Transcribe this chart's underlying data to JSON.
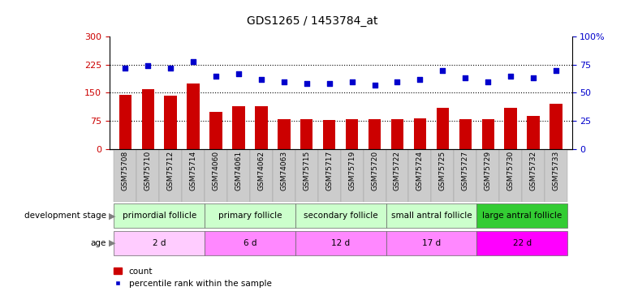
{
  "title": "GDS1265 / 1453784_at",
  "samples": [
    "GSM75708",
    "GSM75710",
    "GSM75712",
    "GSM75714",
    "GSM74060",
    "GSM74061",
    "GSM74062",
    "GSM74063",
    "GSM75715",
    "GSM75717",
    "GSM75719",
    "GSM75720",
    "GSM75722",
    "GSM75724",
    "GSM75725",
    "GSM75727",
    "GSM75729",
    "GSM75730",
    "GSM75732",
    "GSM75733"
  ],
  "counts": [
    145,
    160,
    143,
    175,
    100,
    115,
    115,
    80,
    80,
    78,
    80,
    80,
    80,
    82,
    110,
    80,
    80,
    110,
    88,
    120
  ],
  "percentile": [
    72,
    74,
    72,
    78,
    65,
    67,
    62,
    60,
    58,
    58,
    60,
    57,
    60,
    62,
    70,
    63,
    60,
    65,
    63,
    70
  ],
  "left_ylim": [
    0,
    300
  ],
  "right_ylim": [
    0,
    100
  ],
  "left_yticks": [
    0,
    75,
    150,
    225,
    300
  ],
  "right_yticks": [
    0,
    25,
    50,
    75,
    100
  ],
  "right_yticklabels": [
    "0",
    "25",
    "50",
    "75",
    "100%"
  ],
  "bar_color": "#cc0000",
  "dot_color": "#0000cc",
  "hline_values": [
    75,
    150,
    225
  ],
  "groups": [
    {
      "label": "primordial follicle",
      "start": 0,
      "end": 4,
      "color": "#ccffcc"
    },
    {
      "label": "primary follicle",
      "start": 4,
      "end": 8,
      "color": "#ccffcc"
    },
    {
      "label": "secondary follicle",
      "start": 8,
      "end": 12,
      "color": "#ccffcc"
    },
    {
      "label": "small antral follicle",
      "start": 12,
      "end": 16,
      "color": "#ccffcc"
    },
    {
      "label": "large antral follicle",
      "start": 16,
      "end": 20,
      "color": "#33cc33"
    }
  ],
  "ages": [
    {
      "label": "2 d",
      "start": 0,
      "end": 4,
      "color": "#ffccff"
    },
    {
      "label": "6 d",
      "start": 4,
      "end": 8,
      "color": "#ff88ff"
    },
    {
      "label": "12 d",
      "start": 8,
      "end": 12,
      "color": "#ff88ff"
    },
    {
      "label": "17 d",
      "start": 12,
      "end": 16,
      "color": "#ff88ff"
    },
    {
      "label": "22 d",
      "start": 16,
      "end": 20,
      "color": "#ff00ff"
    }
  ],
  "dev_stage_label": "development stage",
  "age_label": "age",
  "legend_bar_label": "count",
  "legend_dot_label": "percentile rank within the sample",
  "xtick_bg": "#cccccc"
}
